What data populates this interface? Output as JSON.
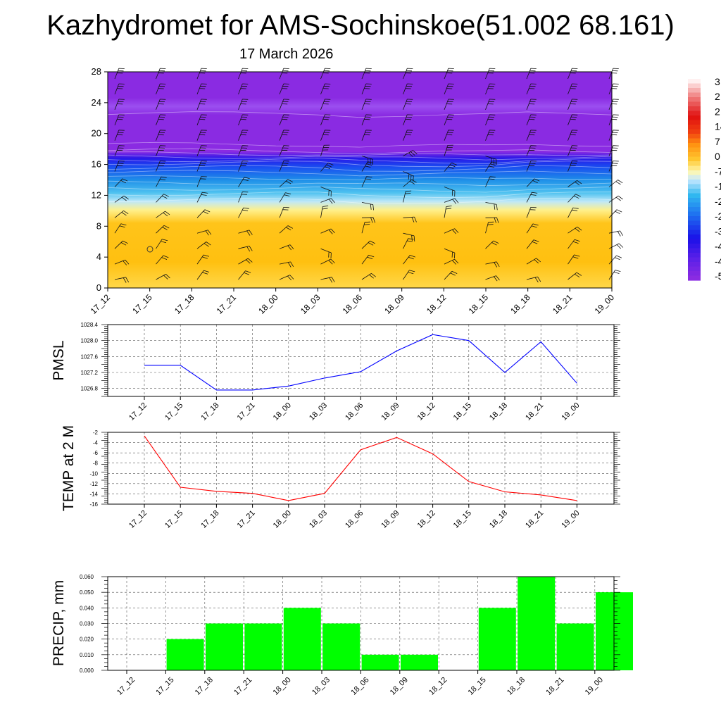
{
  "title": "Kazhydromet for AMS-Sochinskoe(51.002 68.161)",
  "subtitle": "17 March 2026",
  "time_labels": [
    "17_12",
    "17_15",
    "17_18",
    "17_21",
    "18_00",
    "18_03",
    "18_06",
    "18_09",
    "18_12",
    "18_15",
    "18_18",
    "18_21",
    "19_00"
  ],
  "chart_data": [
    {
      "type": "heatmap",
      "name": "vertical-cross-section",
      "x": [
        "17_12",
        "17_15",
        "17_18",
        "17_21",
        "18_00",
        "18_03",
        "18_06",
        "18_09",
        "18_12",
        "18_15",
        "18_18",
        "18_21",
        "19_00"
      ],
      "ylim": [
        0,
        28
      ],
      "yticks": [
        0,
        4,
        8,
        12,
        16,
        20,
        24,
        28
      ],
      "colorbar_labels": [
        "3",
        "2",
        "2",
        "14",
        "7",
        "0",
        "-7",
        "-1",
        "-2",
        "-2",
        "-3",
        "-4",
        "-4",
        "-5"
      ],
      "colors": {
        "warm": "#ffc40a",
        "cold": "#8a2be2",
        "mid": "#1ea0f0"
      }
    },
    {
      "type": "line",
      "name": "pmsl",
      "ylabel": "PMSL",
      "x": [
        "17_12",
        "17_15",
        "17_18",
        "17_21",
        "18_00",
        "18_03",
        "18_06",
        "18_09",
        "18_12",
        "18_15",
        "18_18",
        "18_21",
        "19_00"
      ],
      "values": [
        1027.38,
        1027.38,
        1026.76,
        1026.76,
        1026.86,
        1027.06,
        1027.22,
        1027.74,
        1028.15,
        1028.0,
        1027.2,
        1027.97,
        1026.93
      ],
      "ylim": [
        1026.6,
        1028.4
      ],
      "yticks": [
        "1026.8",
        "1027.2",
        "1027.6",
        "1028.0",
        "1028.4"
      ],
      "color": "#0000ff"
    },
    {
      "type": "line",
      "name": "temp2m",
      "ylabel": "TEMP at 2 M",
      "x": [
        "17_12",
        "17_15",
        "17_18",
        "17_21",
        "18_00",
        "18_03",
        "18_06",
        "18_09",
        "18_12",
        "18_15",
        "18_18",
        "18_21",
        "19_00"
      ],
      "values": [
        -2.7,
        -12.7,
        -13.5,
        -13.9,
        -15.3,
        -13.9,
        -5.4,
        -3.0,
        -6.2,
        -11.6,
        -13.6,
        -14.2,
        -15.3
      ],
      "ylim": [
        -16,
        -2
      ],
      "yticks": [
        "-2",
        "-4",
        "-6",
        "-8",
        "-10",
        "-12",
        "-14",
        "-16"
      ],
      "color": "#ff0000"
    },
    {
      "type": "bar",
      "name": "precip",
      "ylabel": "PRECIP, mm",
      "categories": [
        "17_12",
        "17_15",
        "17_18",
        "17_21",
        "18_00",
        "18_03",
        "18_06",
        "18_09",
        "18_12",
        "18_15",
        "18_18",
        "18_21",
        "19_00"
      ],
      "values": [
        0,
        0.02,
        0.03,
        0.03,
        0.04,
        0.03,
        0.01,
        0.01,
        0,
        0.04,
        0.06,
        0.03,
        0.05
      ],
      "ylim": [
        0,
        0.06
      ],
      "yticks": [
        "0.000",
        "0.010",
        "0.020",
        "0.030",
        "0.040",
        "0.050",
        "0.060"
      ],
      "color": "#00ff00"
    }
  ]
}
